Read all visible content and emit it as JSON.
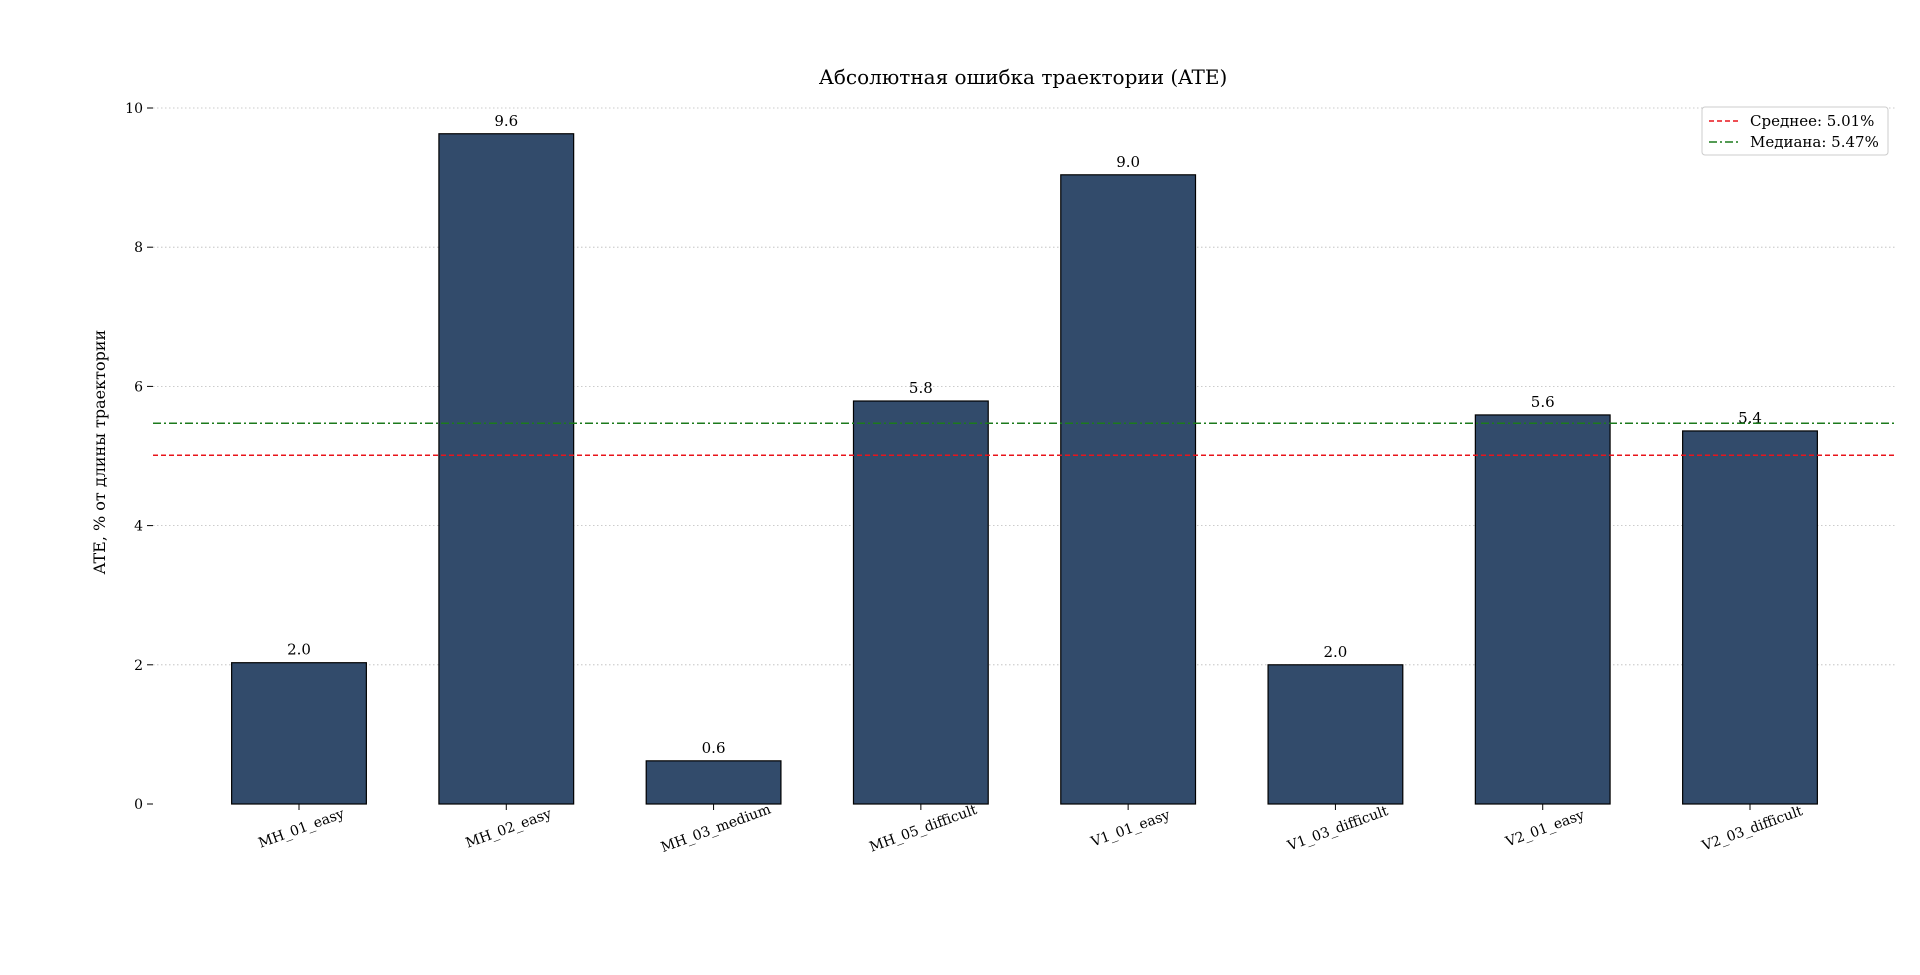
{
  "chart_data": {
    "type": "bar",
    "title": "Абсолютная ошибка траектории (ATE)",
    "xlabel": "",
    "ylabel": "ATE, % от длины траектории",
    "categories": [
      "MH_01_easy",
      "MH_02_easy",
      "MH_03_medium",
      "MH_05_difficult",
      "V1_01_easy",
      "V1_03_difficult",
      "V2_01_easy",
      "V2_03_difficult"
    ],
    "values": [
      2.03,
      9.63,
      0.62,
      5.79,
      9.04,
      2.0,
      5.59,
      5.36
    ],
    "value_labels": [
      "2.0",
      "9.6",
      "0.6",
      "5.8",
      "9.0",
      "2.0",
      "5.6",
      "5.4"
    ],
    "ylim": [
      0,
      10
    ],
    "yticks": [
      0,
      2,
      4,
      6,
      8,
      10
    ],
    "grid": "y-dotted",
    "bar_color": "#324b6b",
    "bar_edge_color": "#000000",
    "reference_lines": [
      {
        "label": "Среднее: 5.01%",
        "value": 5.01,
        "color": "#e8141b",
        "style": "dashed"
      },
      {
        "label": "Медиана: 5.47%",
        "value": 5.47,
        "color": "#1c7a1c",
        "style": "dashdot"
      }
    ],
    "legend_placement": "top-right"
  }
}
